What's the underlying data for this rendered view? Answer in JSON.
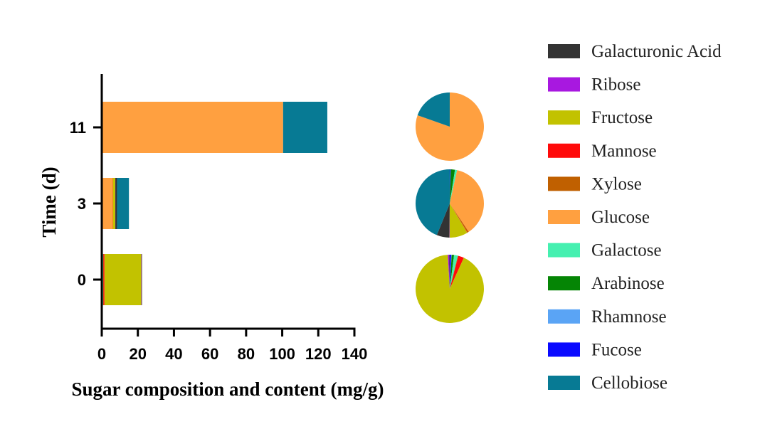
{
  "chart_data": {
    "type": "bar",
    "orientation": "horizontal",
    "stacked": true,
    "xlabel": "Sugar composition and content (mg/g)",
    "ylabel": "Time (d)",
    "xlim": [
      0,
      140
    ],
    "xticks": [
      0,
      20,
      40,
      60,
      80,
      100,
      120,
      140
    ],
    "categories": [
      "0",
      "3",
      "11"
    ],
    "grid": false,
    "legend_placement": "right",
    "legend_order": [
      "Galacturonic Acid",
      "Ribose",
      "Fructose",
      "Mannose",
      "Xylose",
      "Glucose",
      "Galactose",
      "Arabinose",
      "Rhamnose",
      "Fucose",
      "Cellobiose"
    ],
    "series": [
      {
        "name": "Fucose",
        "color": "#0a0aff",
        "values": [
          0.15,
          0.05,
          0
        ]
      },
      {
        "name": "Rhamnose",
        "color": "#5aa4f5",
        "values": [
          0.05,
          0.02,
          0
        ]
      },
      {
        "name": "Arabinose",
        "color": "#058505",
        "values": [
          0.25,
          0.3,
          0
        ]
      },
      {
        "name": "Galactose",
        "color": "#45f0b0",
        "values": [
          0.4,
          0.15,
          0
        ]
      },
      {
        "name": "Glucose",
        "color": "#ffa040",
        "values": [
          0,
          5.6,
          100.5
        ]
      },
      {
        "name": "Xylose",
        "color": "#c06000",
        "values": [
          0.05,
          0.1,
          0
        ]
      },
      {
        "name": "Mannose",
        "color": "#ff0a0a",
        "values": [
          0.6,
          0.02,
          0
        ]
      },
      {
        "name": "Fructose",
        "color": "#c2c200",
        "values": [
          20.4,
          1.3,
          0
        ]
      },
      {
        "name": "Ribose",
        "color": "#a818e0",
        "values": [
          0.15,
          0.02,
          0
        ]
      },
      {
        "name": "Galacturonic Acid",
        "color": "#333333",
        "values": [
          0.05,
          0.9,
          0
        ]
      },
      {
        "name": "Cellobiose",
        "color": "#077a94",
        "values": [
          0,
          6.6,
          24.5
        ]
      }
    ],
    "pies": "one pie per time point showing the same values as proportions"
  }
}
